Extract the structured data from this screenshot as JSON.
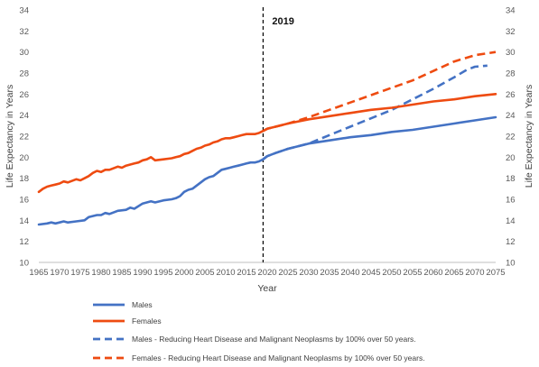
{
  "chart_data": {
    "type": "line",
    "title": "",
    "xlabel": "Year",
    "ylabel_left": "Life Expectancy in Years",
    "ylabel_right": "Life Expectancy in Years",
    "xlim": [
      1965,
      2075
    ],
    "ylim": [
      10,
      34
    ],
    "x_ticks": [
      1965,
      1970,
      1975,
      1980,
      1985,
      1990,
      1995,
      2000,
      2005,
      2010,
      2015,
      2020,
      2025,
      2030,
      2035,
      2040,
      2045,
      2050,
      2055,
      2060,
      2065,
      2070,
      2075
    ],
    "y_ticks": [
      10,
      12,
      14,
      16,
      18,
      20,
      22,
      24,
      26,
      28,
      30,
      32,
      34
    ],
    "grid": false,
    "annotation": {
      "x": 2019,
      "label": "2019",
      "style": "dashed-vertical-line"
    },
    "legend_position": "bottom",
    "series": [
      {
        "name": "Males",
        "color": "#4472C4",
        "dash": "solid",
        "points": [
          [
            1965,
            13.6
          ],
          [
            1967,
            13.7
          ],
          [
            1968,
            13.8
          ],
          [
            1969,
            13.7
          ],
          [
            1970,
            13.8
          ],
          [
            1971,
            13.9
          ],
          [
            1972,
            13.8
          ],
          [
            1974,
            13.9
          ],
          [
            1976,
            14.0
          ],
          [
            1977,
            14.3
          ],
          [
            1979,
            14.5
          ],
          [
            1980,
            14.5
          ],
          [
            1981,
            14.7
          ],
          [
            1982,
            14.6
          ],
          [
            1984,
            14.9
          ],
          [
            1986,
            15.0
          ],
          [
            1987,
            15.2
          ],
          [
            1988,
            15.1
          ],
          [
            1990,
            15.6
          ],
          [
            1991,
            15.7
          ],
          [
            1992,
            15.8
          ],
          [
            1993,
            15.7
          ],
          [
            1995,
            15.9
          ],
          [
            1997,
            16.0
          ],
          [
            1998,
            16.1
          ],
          [
            1999,
            16.3
          ],
          [
            2000,
            16.7
          ],
          [
            2001,
            16.9
          ],
          [
            2002,
            17.0
          ],
          [
            2003,
            17.3
          ],
          [
            2004,
            17.6
          ],
          [
            2005,
            17.9
          ],
          [
            2006,
            18.1
          ],
          [
            2007,
            18.2
          ],
          [
            2008,
            18.5
          ],
          [
            2009,
            18.8
          ],
          [
            2010,
            18.9
          ],
          [
            2011,
            19.0
          ],
          [
            2012,
            19.1
          ],
          [
            2013,
            19.2
          ],
          [
            2014,
            19.3
          ],
          [
            2015,
            19.4
          ],
          [
            2016,
            19.5
          ],
          [
            2017,
            19.5
          ],
          [
            2018,
            19.6
          ],
          [
            2019,
            19.8
          ],
          [
            2020,
            20.1
          ],
          [
            2022,
            20.4
          ],
          [
            2025,
            20.8
          ],
          [
            2030,
            21.3
          ],
          [
            2035,
            21.6
          ],
          [
            2040,
            21.9
          ],
          [
            2045,
            22.1
          ],
          [
            2050,
            22.4
          ],
          [
            2055,
            22.6
          ],
          [
            2060,
            22.9
          ],
          [
            2065,
            23.2
          ],
          [
            2070,
            23.5
          ],
          [
            2075,
            23.8
          ]
        ]
      },
      {
        "name": "Females",
        "color": "#EE4B11",
        "dash": "solid",
        "points": [
          [
            1965,
            16.7
          ],
          [
            1966,
            17.0
          ],
          [
            1967,
            17.2
          ],
          [
            1968,
            17.3
          ],
          [
            1969,
            17.4
          ],
          [
            1970,
            17.5
          ],
          [
            1971,
            17.7
          ],
          [
            1972,
            17.6
          ],
          [
            1974,
            17.9
          ],
          [
            1975,
            17.8
          ],
          [
            1976,
            18.0
          ],
          [
            1977,
            18.2
          ],
          [
            1978,
            18.5
          ],
          [
            1979,
            18.7
          ],
          [
            1980,
            18.6
          ],
          [
            1981,
            18.8
          ],
          [
            1982,
            18.8
          ],
          [
            1984,
            19.1
          ],
          [
            1985,
            19.0
          ],
          [
            1986,
            19.2
          ],
          [
            1987,
            19.3
          ],
          [
            1988,
            19.4
          ],
          [
            1989,
            19.5
          ],
          [
            1990,
            19.7
          ],
          [
            1991,
            19.8
          ],
          [
            1992,
            20.0
          ],
          [
            1993,
            19.7
          ],
          [
            1995,
            19.8
          ],
          [
            1997,
            19.9
          ],
          [
            1998,
            20.0
          ],
          [
            1999,
            20.1
          ],
          [
            2000,
            20.3
          ],
          [
            2001,
            20.4
          ],
          [
            2002,
            20.6
          ],
          [
            2003,
            20.8
          ],
          [
            2004,
            20.9
          ],
          [
            2005,
            21.1
          ],
          [
            2006,
            21.2
          ],
          [
            2007,
            21.4
          ],
          [
            2008,
            21.5
          ],
          [
            2009,
            21.7
          ],
          [
            2010,
            21.8
          ],
          [
            2011,
            21.8
          ],
          [
            2012,
            21.9
          ],
          [
            2013,
            22.0
          ],
          [
            2014,
            22.1
          ],
          [
            2015,
            22.2
          ],
          [
            2016,
            22.2
          ],
          [
            2017,
            22.2
          ],
          [
            2018,
            22.3
          ],
          [
            2019,
            22.5
          ],
          [
            2020,
            22.7
          ],
          [
            2022,
            22.9
          ],
          [
            2025,
            23.2
          ],
          [
            2030,
            23.6
          ],
          [
            2035,
            23.9
          ],
          [
            2040,
            24.2
          ],
          [
            2045,
            24.5
          ],
          [
            2050,
            24.7
          ],
          [
            2055,
            25.0
          ],
          [
            2060,
            25.3
          ],
          [
            2065,
            25.5
          ],
          [
            2070,
            25.8
          ],
          [
            2075,
            26.0
          ]
        ]
      },
      {
        "name": "Males - Reducing Heart Disease and Malignant Neoplasms by 100% over 50 years.",
        "color": "#4472C4",
        "dash": "dashed",
        "points": [
          [
            2019,
            19.8
          ],
          [
            2020,
            20.1
          ],
          [
            2022,
            20.4
          ],
          [
            2025,
            20.8
          ],
          [
            2030,
            21.3
          ],
          [
            2035,
            22.1
          ],
          [
            2040,
            22.9
          ],
          [
            2045,
            23.7
          ],
          [
            2050,
            24.5
          ],
          [
            2055,
            25.5
          ],
          [
            2060,
            26.5
          ],
          [
            2065,
            27.6
          ],
          [
            2068,
            28.3
          ],
          [
            2070,
            28.6
          ],
          [
            2073,
            28.7
          ]
        ]
      },
      {
        "name": "Females -  Reducing Heart Disease and Malignant Neoplasms by 100% over 50 years.",
        "color": "#EE4B11",
        "dash": "dashed",
        "points": [
          [
            2019,
            22.5
          ],
          [
            2020,
            22.7
          ],
          [
            2022,
            22.9
          ],
          [
            2025,
            23.2
          ],
          [
            2030,
            23.8
          ],
          [
            2035,
            24.5
          ],
          [
            2040,
            25.2
          ],
          [
            2045,
            25.9
          ],
          [
            2050,
            26.6
          ],
          [
            2055,
            27.3
          ],
          [
            2060,
            28.2
          ],
          [
            2065,
            29.1
          ],
          [
            2070,
            29.7
          ],
          [
            2075,
            30.0
          ]
        ]
      }
    ]
  }
}
